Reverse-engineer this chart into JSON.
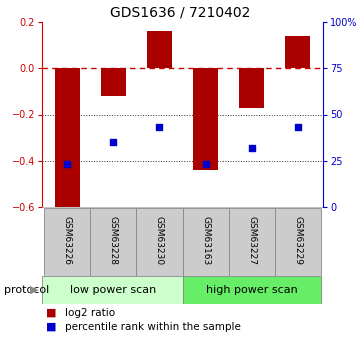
{
  "title": "GDS1636 / 7210402",
  "samples": [
    "GSM63226",
    "GSM63228",
    "GSM63230",
    "GSM63163",
    "GSM63227",
    "GSM63229"
  ],
  "log2_ratio": [
    -0.6,
    -0.12,
    0.16,
    -0.44,
    -0.17,
    0.14
  ],
  "percentile_rank": [
    23,
    35,
    43,
    23,
    32,
    43
  ],
  "bar_color": "#aa0000",
  "dot_color": "#0000cc",
  "ylim_left": [
    -0.6,
    0.2
  ],
  "ylim_right": [
    0,
    100
  ],
  "yticks_left": [
    0.2,
    0.0,
    -0.2,
    -0.4,
    -0.6
  ],
  "yticks_right": [
    100,
    75,
    50,
    25,
    0
  ],
  "ytick_labels_right": [
    "100%",
    "75",
    "50",
    "25",
    "0"
  ],
  "hline_color": "#cc0000",
  "dotted_line_color": "#333333",
  "bar_width": 0.55,
  "title_fontsize": 10,
  "axis_fontsize": 7,
  "sample_fontsize": 6.5,
  "protocol_fontsize": 8,
  "legend_fontsize": 7.5,
  "low_power_color": "#ccffcc",
  "high_power_color": "#66ee66",
  "sample_box_color": "#cccccc",
  "sample_box_edge": "#888888"
}
